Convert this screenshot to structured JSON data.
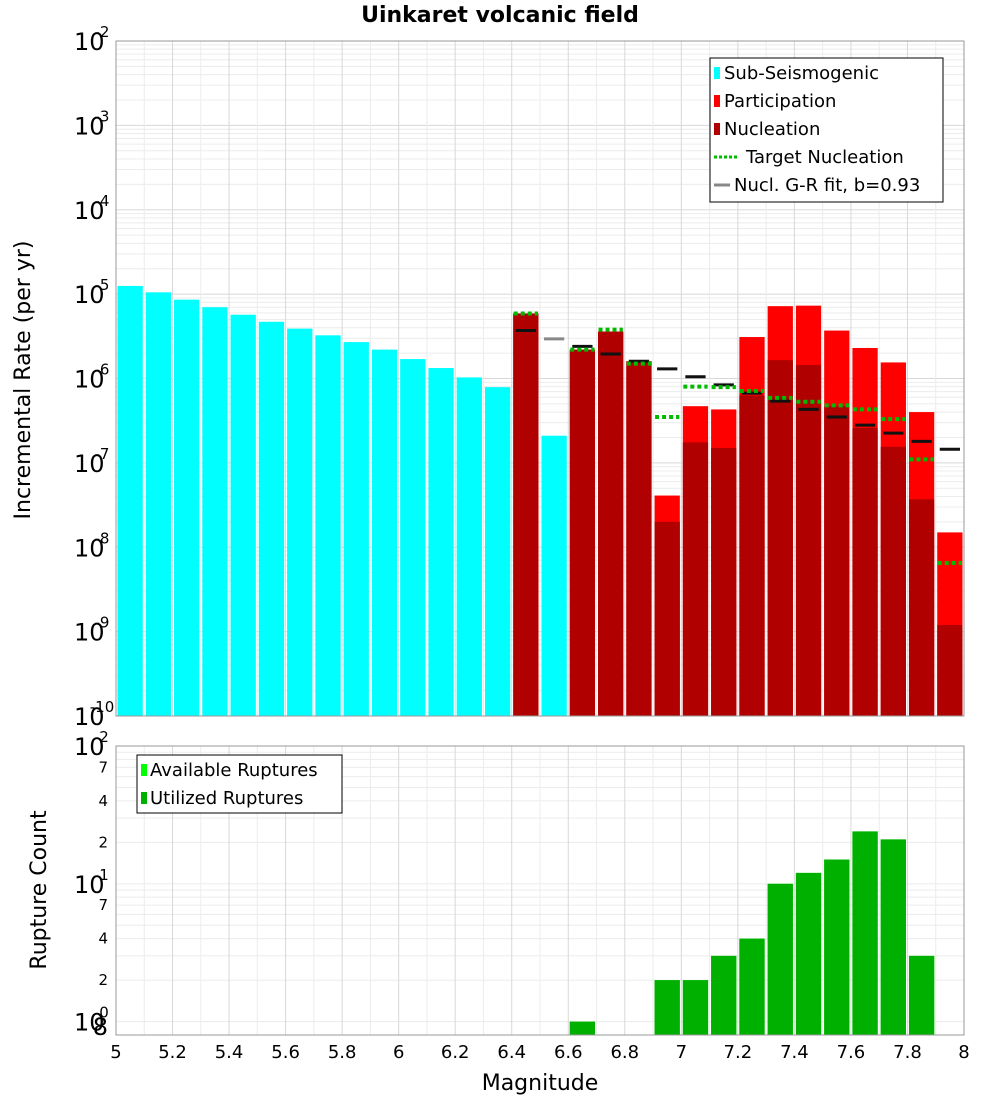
{
  "chart_data": [
    {
      "type": "bar",
      "title": "Uinkaret volcanic field",
      "ylabel": "Incremental Rate (per yr)",
      "xlabel": "",
      "xlim": [
        5,
        8
      ],
      "ylim": [
        1e-10,
        0.01
      ],
      "yscale": "log",
      "bin_width": 0.1,
      "y_tick_labels": [
        {
          "base": "10",
          "exp": "-10"
        },
        {
          "base": "10",
          "exp": "-9"
        },
        {
          "base": "10",
          "exp": "-8"
        },
        {
          "base": "10",
          "exp": "-7"
        },
        {
          "base": "10",
          "exp": "-6"
        },
        {
          "base": "10",
          "exp": "-5"
        },
        {
          "base": "10",
          "exp": "-4"
        },
        {
          "base": "10",
          "exp": "-3"
        },
        {
          "base": "10",
          "exp": "-2"
        }
      ],
      "legend_position": "top-right",
      "grid": true,
      "series": [
        {
          "name": "Sub-Seismogenic",
          "color": "#00ffff",
          "x": [
            5.05,
            5.15,
            5.25,
            5.35,
            5.45,
            5.55,
            5.65,
            5.75,
            5.85,
            5.95,
            6.05,
            6.15,
            6.25,
            6.35,
            6.55
          ],
          "values": [
            1.25e-05,
            1.05e-05,
            8.6e-06,
            7e-06,
            5.7e-06,
            4.7e-06,
            3.9e-06,
            3.25e-06,
            2.7e-06,
            2.2e-06,
            1.7e-06,
            1.33e-06,
            1.03e-06,
            7.9e-07,
            2.1e-07
          ]
        },
        {
          "name": "Participation",
          "color": "#ff0000",
          "x": [
            6.45,
            6.65,
            6.75,
            6.85,
            6.95,
            7.05,
            7.15,
            7.25,
            7.35,
            7.45,
            7.55,
            7.65,
            7.75,
            7.85,
            7.95
          ],
          "values": [
            5.9e-06,
            2.2e-06,
            3.6e-06,
            1.6e-06,
            4.1e-08,
            4.7e-07,
            4.3e-07,
            3.1e-06,
            7.2e-06,
            7.3e-06,
            3.7e-06,
            2.3e-06,
            1.55e-06,
            4e-07,
            1.5e-08
          ]
        },
        {
          "name": "Nucleation",
          "color": "#b00000",
          "x": [
            6.45,
            6.65,
            6.75,
            6.85,
            6.95,
            7.05,
            7.15,
            7.25,
            7.35,
            7.45,
            7.55,
            7.65,
            7.75,
            7.85,
            7.95
          ],
          "values": [
            5.9e-06,
            2.2e-06,
            3.6e-06,
            1.6e-06,
            2e-08,
            1.75e-07,
            1.5e-07,
            6.3e-07,
            1.65e-06,
            1.45e-06,
            4.7e-07,
            2.6e-07,
            1.55e-07,
            3.7e-08,
            1.2e-09
          ]
        },
        {
          "name": "Target Nucleation",
          "color": "#00bb00",
          "style": "dotted",
          "x": [
            6.45,
            6.65,
            6.75,
            6.85,
            6.95,
            7.05,
            7.15,
            7.25,
            7.35,
            7.45,
            7.55,
            7.65,
            7.75,
            7.85,
            7.95
          ],
          "values": [
            5.9e-06,
            2.2e-06,
            3.8e-06,
            1.5e-06,
            3.5e-07,
            8e-07,
            7.9e-07,
            7.1e-07,
            5.9e-07,
            5.3e-07,
            4.8e-07,
            4.3e-07,
            3.3e-07,
            1.1e-07,
            6.5e-09
          ]
        },
        {
          "name": "Nucl. G-R fit, b=0.93",
          "color": "#888888",
          "style": "dash",
          "x": [
            6.45,
            6.55,
            6.65,
            6.75,
            6.85,
            6.95,
            7.05,
            7.15,
            7.25,
            7.35,
            7.45,
            7.55,
            7.65,
            7.75,
            7.85,
            7.95
          ],
          "values": [
            3.7e-06,
            2.95e-06,
            2.4e-06,
            1.95e-06,
            1.6e-06,
            1.3e-06,
            1.05e-06,
            8.4e-07,
            6.7e-07,
            5.4e-07,
            4.3e-07,
            3.5e-07,
            2.8e-07,
            2.25e-07,
            1.8e-07,
            1.45e-07
          ]
        }
      ]
    },
    {
      "type": "bar",
      "title": "",
      "ylabel": "Rupture Count",
      "xlabel": "Magnitude",
      "xlim": [
        5,
        8
      ],
      "x_tick_labels": [
        "5",
        "5.2",
        "5.4",
        "5.6",
        "5.8",
        "6",
        "6.2",
        "6.4",
        "6.6",
        "6.8",
        "7",
        "7.2",
        "7.4",
        "7.6",
        "7.8",
        "8"
      ],
      "ylim": [
        0.8,
        100
      ],
      "yscale": "log",
      "y_tick_labels": [
        {
          "base": "10",
          "exp": "2"
        },
        {
          "base": "10",
          "exp": "1"
        },
        {
          "base": "10",
          "exp": "0"
        }
      ],
      "y_minor_labels": [
        "7",
        "4",
        "2",
        "7",
        "4",
        "2",
        "8"
      ],
      "legend_position": "top-left",
      "grid": true,
      "series": [
        {
          "name": "Available Ruptures",
          "color": "#00ff00",
          "x": [
            6.65,
            6.95,
            7.05,
            7.15,
            7.25,
            7.35,
            7.45,
            7.55,
            7.65,
            7.75,
            7.85
          ],
          "values": [
            1,
            2,
            2,
            3,
            4,
            10,
            12,
            15,
            24,
            21,
            3
          ]
        },
        {
          "name": "Utilized Ruptures",
          "color": "#00b000",
          "x": [
            6.65,
            6.95,
            7.05,
            7.15,
            7.25,
            7.35,
            7.45,
            7.55,
            7.65,
            7.75,
            7.85
          ],
          "values": [
            1,
            2,
            2,
            3,
            4,
            10,
            12,
            15,
            24,
            21,
            3
          ]
        }
      ]
    }
  ]
}
